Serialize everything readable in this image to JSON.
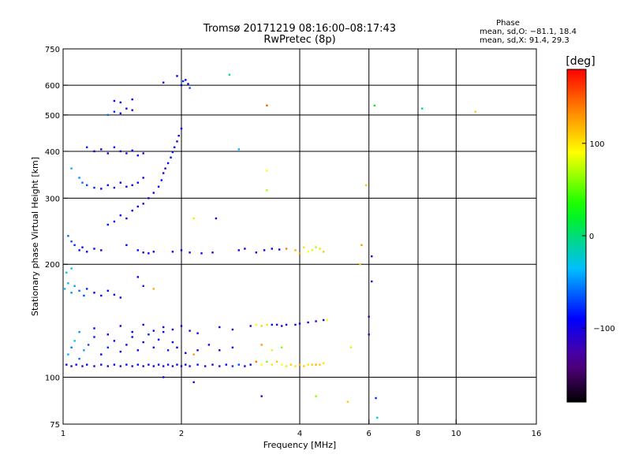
{
  "chart_data": {
    "type": "scatter",
    "title": "Tromsø 20171219 08:16:00–08:17:43",
    "subtitle": "RwPretec (8p)",
    "xlabel": "Frequency [MHz]",
    "ylabel": "Stationary phase Virtual Height [km]",
    "x_scale": "log",
    "y_scale": "log",
    "xlim": [
      1,
      16
    ],
    "ylim": [
      75,
      750
    ],
    "x_ticks": [
      1,
      2,
      4,
      6,
      8,
      10,
      16
    ],
    "y_ticks": [
      75,
      100,
      200,
      300,
      400,
      500,
      600,
      750
    ],
    "x_grid": [
      2,
      4,
      6,
      8,
      10
    ],
    "y_grid": [
      100,
      200,
      300,
      400,
      500,
      600
    ],
    "grid": true,
    "stats": {
      "heading": "Phase",
      "line_o": "mean, sd,O: −81.1, 18.4",
      "line_x": "mean, sd,X:  91.4, 29.3"
    },
    "colorbar": {
      "label": "[deg]",
      "min": -180,
      "max": 180,
      "ticks": [
        100,
        0,
        -100
      ],
      "colormap": "rainbow"
    },
    "points": [
      [
        1.02,
        108,
        -90
      ],
      [
        1.05,
        107,
        -100
      ],
      [
        1.08,
        108,
        -95
      ],
      [
        1.12,
        107,
        -100
      ],
      [
        1.15,
        108,
        -92
      ],
      [
        1.2,
        107,
        -100
      ],
      [
        1.25,
        108,
        -95
      ],
      [
        1.3,
        107,
        -100
      ],
      [
        1.35,
        108,
        -90
      ],
      [
        1.4,
        107,
        -98
      ],
      [
        1.45,
        108,
        -95
      ],
      [
        1.5,
        107,
        -100
      ],
      [
        1.55,
        108,
        -92
      ],
      [
        1.6,
        107,
        -98
      ],
      [
        1.65,
        108,
        -95
      ],
      [
        1.7,
        107,
        -100
      ],
      [
        1.75,
        108,
        -92
      ],
      [
        1.8,
        107,
        -98
      ],
      [
        1.85,
        108,
        -95
      ],
      [
        1.9,
        107,
        -100
      ],
      [
        1.95,
        108,
        -92
      ],
      [
        2.0,
        107,
        -98
      ],
      [
        2.05,
        108,
        -95
      ],
      [
        2.1,
        107,
        -100
      ],
      [
        2.2,
        108,
        -92
      ],
      [
        2.3,
        107,
        -98
      ],
      [
        2.4,
        108,
        -95
      ],
      [
        2.5,
        107,
        -100
      ],
      [
        2.6,
        108,
        -92
      ],
      [
        2.7,
        107,
        -80
      ],
      [
        2.8,
        108,
        -70
      ],
      [
        2.9,
        107,
        -100
      ],
      [
        3.0,
        108,
        -92
      ],
      [
        3.1,
        110,
        140
      ],
      [
        3.2,
        108,
        90
      ],
      [
        3.3,
        110,
        60
      ],
      [
        3.4,
        108,
        100
      ],
      [
        3.5,
        110,
        110
      ],
      [
        3.6,
        108,
        90
      ],
      [
        3.7,
        107,
        80
      ],
      [
        3.8,
        108,
        110
      ],
      [
        3.9,
        107,
        100
      ],
      [
        4.0,
        108,
        120
      ],
      [
        4.1,
        107,
        110
      ],
      [
        4.2,
        108,
        100
      ],
      [
        4.3,
        108,
        110
      ],
      [
        4.4,
        108,
        120
      ],
      [
        4.5,
        108,
        110
      ],
      [
        4.6,
        109,
        100
      ],
      [
        1.03,
        115,
        -40
      ],
      [
        1.05,
        120,
        -55
      ],
      [
        1.07,
        125,
        -30
      ],
      [
        1.1,
        112,
        -60
      ],
      [
        1.13,
        118,
        -45
      ],
      [
        1.16,
        122,
        -70
      ],
      [
        1.2,
        128,
        -85
      ],
      [
        1.25,
        115,
        -90
      ],
      [
        1.3,
        120,
        -80
      ],
      [
        1.35,
        125,
        -95
      ],
      [
        1.4,
        117,
        -100
      ],
      [
        1.45,
        122,
        -90
      ],
      [
        1.5,
        128,
        -95
      ],
      [
        1.55,
        118,
        -100
      ],
      [
        1.6,
        124,
        -90
      ],
      [
        1.65,
        130,
        -85
      ],
      [
        1.7,
        120,
        -95
      ],
      [
        1.75,
        126,
        -90
      ],
      [
        1.8,
        132,
        -95
      ],
      [
        1.85,
        118,
        -85
      ],
      [
        1.9,
        124,
        -90
      ],
      [
        1.95,
        120,
        -95
      ],
      [
        2.05,
        116,
        -95
      ],
      [
        2.2,
        118,
        -90
      ],
      [
        2.35,
        122,
        -92
      ],
      [
        2.5,
        118,
        -95
      ],
      [
        2.7,
        120,
        -90
      ],
      [
        3.2,
        122,
        130
      ],
      [
        3.4,
        118,
        80
      ],
      [
        3.6,
        120,
        60
      ],
      [
        1.1,
        132,
        -50
      ],
      [
        1.2,
        135,
        -90
      ],
      [
        1.3,
        130,
        -95
      ],
      [
        1.4,
        137,
        -100
      ],
      [
        1.5,
        132,
        -90
      ],
      [
        1.6,
        138,
        -95
      ],
      [
        1.7,
        133,
        -90
      ],
      [
        1.8,
        136,
        -95
      ],
      [
        1.9,
        134,
        -100
      ],
      [
        2.0,
        137,
        -95
      ],
      [
        2.1,
        133,
        -110
      ],
      [
        2.2,
        131,
        -95
      ],
      [
        2.5,
        136,
        -90
      ],
      [
        2.7,
        134,
        -110
      ],
      [
        3.0,
        137,
        -95
      ],
      [
        3.1,
        138,
        90
      ],
      [
        3.2,
        137,
        110
      ],
      [
        3.3,
        138,
        100
      ],
      [
        3.4,
        138,
        -90
      ],
      [
        3.5,
        138,
        -100
      ],
      [
        3.6,
        137,
        -110
      ],
      [
        3.7,
        138,
        -95
      ],
      [
        3.9,
        138,
        -100
      ],
      [
        4.0,
        139,
        -95
      ],
      [
        4.2,
        140,
        -100
      ],
      [
        4.4,
        141,
        -110
      ],
      [
        4.6,
        142,
        -100
      ],
      [
        4.7,
        142,
        90
      ],
      [
        1.01,
        172,
        -30
      ],
      [
        1.03,
        178,
        -40
      ],
      [
        1.05,
        168,
        -50
      ],
      [
        1.07,
        175,
        -45
      ],
      [
        1.1,
        170,
        -60
      ],
      [
        1.13,
        165,
        -70
      ],
      [
        1.15,
        172,
        -80
      ],
      [
        1.2,
        168,
        -90
      ],
      [
        1.25,
        165,
        -95
      ],
      [
        1.3,
        170,
        -90
      ],
      [
        1.35,
        166,
        -100
      ],
      [
        1.4,
        163,
        -95
      ],
      [
        1.02,
        190,
        -20
      ],
      [
        1.05,
        195,
        -30
      ],
      [
        1.6,
        175,
        -80
      ],
      [
        1.7,
        172,
        120
      ],
      [
        1.55,
        185,
        -90
      ],
      [
        1.03,
        238,
        -60
      ],
      [
        1.05,
        230,
        -70
      ],
      [
        1.07,
        225,
        -80
      ],
      [
        1.1,
        218,
        -90
      ],
      [
        1.12,
        222,
        -95
      ],
      [
        1.15,
        216,
        -100
      ],
      [
        1.2,
        220,
        -90
      ],
      [
        1.25,
        218,
        -95
      ],
      [
        1.45,
        225,
        -90
      ],
      [
        1.55,
        218,
        -95
      ],
      [
        1.6,
        215,
        -100
      ],
      [
        1.65,
        214,
        -95
      ],
      [
        1.7,
        216,
        -90
      ],
      [
        1.9,
        216,
        -95
      ],
      [
        2.0,
        218,
        -90
      ],
      [
        2.1,
        215,
        -100
      ],
      [
        2.25,
        214,
        -95
      ],
      [
        2.4,
        215,
        -90
      ],
      [
        2.8,
        218,
        -95
      ],
      [
        2.9,
        220,
        -90
      ],
      [
        3.1,
        215,
        -100
      ],
      [
        3.25,
        218,
        -95
      ],
      [
        3.4,
        220,
        -90
      ],
      [
        3.55,
        219,
        -100
      ],
      [
        3.7,
        220,
        140
      ],
      [
        3.9,
        218,
        120
      ],
      [
        4.0,
        214,
        130
      ],
      [
        4.1,
        222,
        100
      ],
      [
        4.2,
        216,
        90
      ],
      [
        4.3,
        218,
        80
      ],
      [
        4.4,
        222,
        70
      ],
      [
        4.5,
        220,
        100
      ],
      [
        4.6,
        216,
        110
      ],
      [
        5.7,
        200,
        110
      ],
      [
        5.75,
        225,
        130
      ],
      [
        6.1,
        210,
        -110
      ],
      [
        1.35,
        260,
        -90
      ],
      [
        1.4,
        270,
        -95
      ],
      [
        1.45,
        265,
        -100
      ],
      [
        1.5,
        278,
        -90
      ],
      [
        1.55,
        285,
        -95
      ],
      [
        1.6,
        290,
        -100
      ],
      [
        1.65,
        300,
        -90
      ],
      [
        1.7,
        310,
        -95
      ],
      [
        1.75,
        322,
        -100
      ],
      [
        1.78,
        335,
        -90
      ],
      [
        1.8,
        350,
        -95
      ],
      [
        1.82,
        360,
        -100
      ],
      [
        1.85,
        372,
        -90
      ],
      [
        1.88,
        385,
        -95
      ],
      [
        1.9,
        398,
        -100
      ],
      [
        1.92,
        410,
        -90
      ],
      [
        1.95,
        425,
        -95
      ],
      [
        1.97,
        440,
        -100
      ],
      [
        2.0,
        460,
        -90
      ],
      [
        1.3,
        255,
        -85
      ],
      [
        2.15,
        265,
        80
      ],
      [
        2.45,
        265,
        -110
      ],
      [
        3.3,
        315,
        70
      ],
      [
        3.3,
        355,
        90
      ],
      [
        1.05,
        360,
        -40
      ],
      [
        1.1,
        340,
        -50
      ],
      [
        1.12,
        330,
        -60
      ],
      [
        1.15,
        325,
        -70
      ],
      [
        1.2,
        320,
        -80
      ],
      [
        1.25,
        318,
        -90
      ],
      [
        1.3,
        325,
        -95
      ],
      [
        1.35,
        320,
        -100
      ],
      [
        1.4,
        330,
        -90
      ],
      [
        1.45,
        322,
        -95
      ],
      [
        1.5,
        325,
        -100
      ],
      [
        1.55,
        330,
        -90
      ],
      [
        1.6,
        340,
        -95
      ],
      [
        1.15,
        410,
        -80
      ],
      [
        1.2,
        400,
        -90
      ],
      [
        1.25,
        405,
        -95
      ],
      [
        1.3,
        395,
        -100
      ],
      [
        1.35,
        410,
        -90
      ],
      [
        1.4,
        400,
        -95
      ],
      [
        1.45,
        395,
        -100
      ],
      [
        1.5,
        402,
        -90
      ],
      [
        1.55,
        390,
        -95
      ],
      [
        1.6,
        395,
        -100
      ],
      [
        1.3,
        500,
        -60
      ],
      [
        1.35,
        510,
        -80
      ],
      [
        1.4,
        505,
        -90
      ],
      [
        1.45,
        520,
        -95
      ],
      [
        1.5,
        515,
        -100
      ],
      [
        1.35,
        545,
        -90
      ],
      [
        1.4,
        540,
        -95
      ],
      [
        1.5,
        550,
        -100
      ],
      [
        2.0,
        600,
        -90
      ],
      [
        2.02,
        615,
        -80
      ],
      [
        2.05,
        620,
        -95
      ],
      [
        2.08,
        605,
        -100
      ],
      [
        1.95,
        635,
        -90
      ],
      [
        1.8,
        610,
        -100
      ],
      [
        2.1,
        590,
        -70
      ],
      [
        2.65,
        640,
        -10
      ],
      [
        3.3,
        530,
        150
      ],
      [
        6.2,
        530,
        20
      ],
      [
        8.2,
        520,
        -10
      ],
      [
        11.2,
        510,
        110
      ],
      [
        5.9,
        325,
        110
      ],
      [
        2.8,
        405,
        -40
      ],
      [
        5.3,
        86,
        110
      ],
      [
        4.4,
        89,
        60
      ],
      [
        6.25,
        88,
        -80
      ],
      [
        6.3,
        78,
        -20
      ],
      [
        3.2,
        89,
        -100
      ],
      [
        1.8,
        100,
        -100
      ],
      [
        2.15,
        97,
        -110
      ],
      [
        2.15,
        115,
        130
      ],
      [
        6.0,
        145,
        -110
      ],
      [
        6.0,
        130,
        -110
      ],
      [
        6.1,
        180,
        -110
      ],
      [
        5.4,
        120,
        80
      ]
    ]
  }
}
